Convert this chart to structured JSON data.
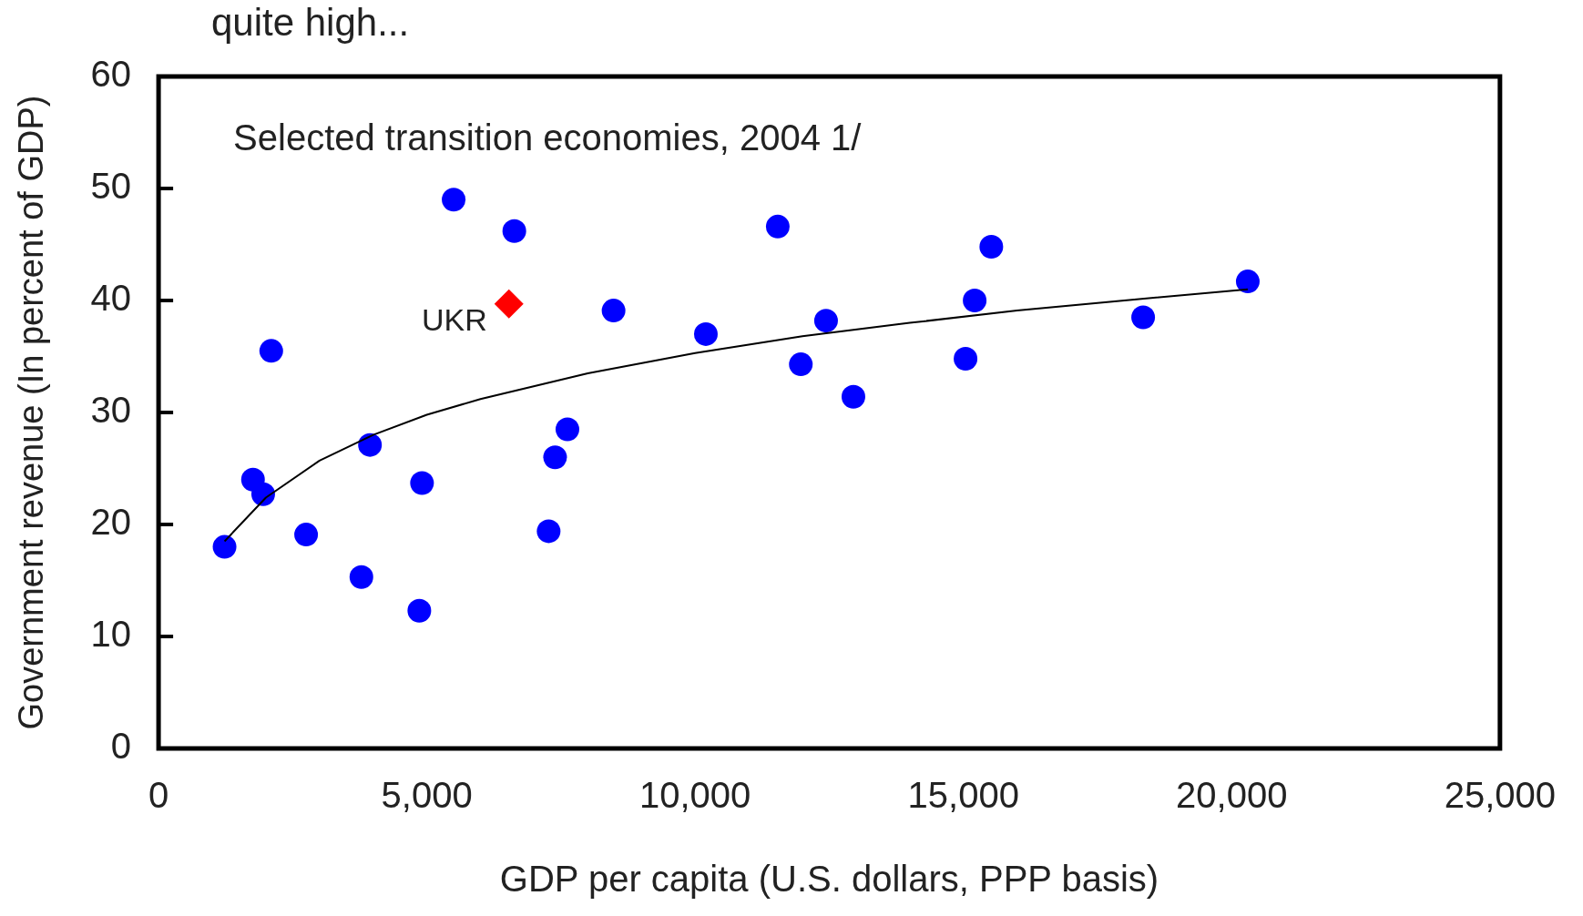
{
  "chart_data": {
    "type": "scatter",
    "title": "quite high...",
    "xlabel": "GDP per capita (U.S. dollars, PPP basis)",
    "ylabel": "Government revenue (In percent of GDP)",
    "annotations": [
      "Selected transition economies, 2004 1/"
    ],
    "xlim": [
      0,
      25000
    ],
    "xticks": [
      0,
      {
        "value": 5000,
        "label": "5,000"
      },
      {
        "value": 10000,
        "label": "10,000"
      },
      {
        "value": 15000,
        "label": "15,000"
      },
      {
        "value": 20000,
        "label": "20,000"
      },
      {
        "value": 25000,
        "label": "25,000"
      }
    ],
    "ylim": [
      0,
      60
    ],
    "yticks": [
      0,
      10,
      20,
      30,
      40,
      50,
      60
    ],
    "grid": false,
    "legend": false,
    "series": [
      {
        "marker": "circle",
        "color": "#0000ff",
        "x": [
          1230,
          1760,
          1950,
          2100,
          2750,
          3780,
          3940,
          4860,
          4910,
          5500,
          6630,
          7270,
          7390,
          7620,
          8480,
          10200,
          11540,
          11970,
          12440,
          12950,
          15040,
          15210,
          15520,
          18350,
          20300
        ],
        "values": [
          18.0,
          24.0,
          22.7,
          35.5,
          19.1,
          15.3,
          27.1,
          12.3,
          23.7,
          49.0,
          46.2,
          19.4,
          26.0,
          28.5,
          39.1,
          37.0,
          46.6,
          34.3,
          38.2,
          31.4,
          34.8,
          40.0,
          44.8,
          38.5,
          41.7
        ]
      },
      {
        "name": "UKR",
        "marker": "diamond",
        "color": "#ff0000",
        "x": [
          6530
        ],
        "values": [
          39.7
        ]
      },
      {
        "type": "line",
        "marker": "none",
        "color": "#000000",
        "x": [
          1230,
          2000,
          3000,
          4000,
          5000,
          6000,
          8000,
          10000,
          12000,
          14000,
          16000,
          18000,
          20300
        ],
        "values": [
          18.5,
          22.4,
          25.7,
          28.0,
          29.8,
          31.2,
          33.5,
          35.3,
          36.8,
          38.0,
          39.1,
          40.0,
          41.0
        ]
      }
    ]
  }
}
